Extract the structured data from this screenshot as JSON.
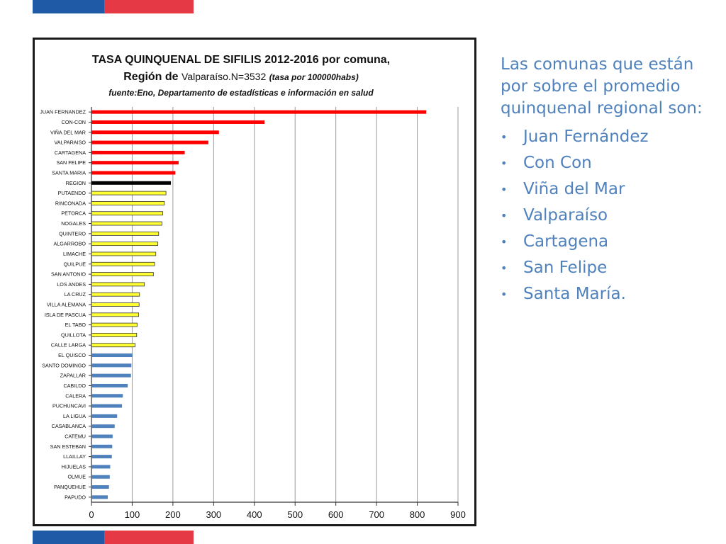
{
  "colors": {
    "flag_blue": "#1f5aa6",
    "flag_red": "#e63946",
    "above_average": "#ff0000",
    "region": "#000000",
    "middle": "#ffff33",
    "below": "#4f81bd",
    "side_text": "#4f81bd"
  },
  "chart_data": {
    "type": "bar",
    "orientation": "horizontal",
    "title_line1": "TASA QUINQUENAL DE SIFILIS  2012-2016 por comuna,",
    "title_line2_prefix": "Región de ",
    "title_line2_main": "Valparaíso.N=3532",
    "title_line2_italic": "(tasa por 100000habs)",
    "subtitle": "fuente:Eno, Departamento de estadísticas e información en salud",
    "xlim": [
      0,
      900
    ],
    "xticks": [
      "0",
      "100",
      "200",
      "300",
      "400",
      "500",
      "600",
      "700",
      "800",
      "900"
    ],
    "grid": true,
    "categories": [
      "JUAN FERNANDEZ",
      "CON-CON",
      "VIÑA DEL MAR",
      "VALPARAISO",
      "CARTAGENA",
      "SAN FELIPE",
      "SANTA MARIA",
      "REGION",
      "PUTAENDO",
      "RINCONADA",
      "PETORCA",
      "NOGALES",
      "QUINTERO",
      "ALGARROBO",
      "LIMACHE",
      "QUILPUE",
      "SAN ANTONIO",
      "LOS ANDES",
      "LA CRUZ",
      "VILLA ALEMANA",
      "ISLA DE PASCUA",
      "EL TABO",
      "QUILLOTA",
      "CALLE LARGA",
      "EL QUISCO",
      "SANTO DOMINGO",
      "ZAPALLAR",
      "CABILDO",
      "CALERA",
      "PUCHUNCAVI",
      "LA LIGUA",
      "CASABLANCA",
      "CATEMU",
      "SAN ESTEBAN",
      "LLAILLAY",
      "HIJUELAS",
      "OLMUE",
      "PANQUEHUE",
      "PAPUDO"
    ],
    "values": [
      822,
      425,
      313,
      287,
      229,
      214,
      206,
      195,
      183,
      179,
      175,
      173,
      165,
      163,
      158,
      155,
      152,
      130,
      118,
      117,
      116,
      112,
      111,
      107,
      101,
      98,
      97,
      89,
      77,
      75,
      63,
      57,
      52,
      51,
      50,
      46,
      45,
      43,
      40
    ],
    "groups": [
      "above",
      "above",
      "above",
      "above",
      "above",
      "above",
      "above",
      "region",
      "middle",
      "middle",
      "middle",
      "middle",
      "middle",
      "middle",
      "middle",
      "middle",
      "middle",
      "middle",
      "middle",
      "middle",
      "middle",
      "middle",
      "middle",
      "middle",
      "below",
      "below",
      "below",
      "below",
      "below",
      "below",
      "below",
      "below",
      "below",
      "below",
      "below",
      "below",
      "below",
      "below",
      "below"
    ]
  },
  "side": {
    "intro": "Las comunas que están por sobre el promedio quinquenal regional son:",
    "items": [
      "Juan Fernández",
      "Con Con",
      "Viña del Mar",
      "Valparaíso",
      "Cartagena",
      "San Felipe",
      "Santa María."
    ]
  }
}
